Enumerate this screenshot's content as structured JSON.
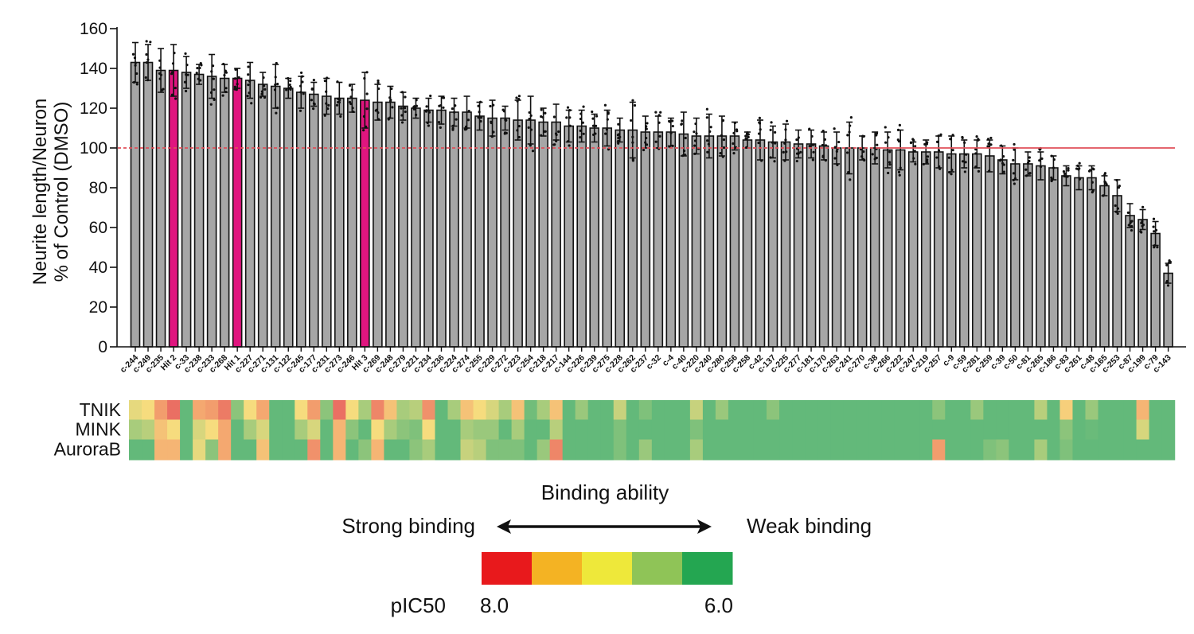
{
  "chart_data": {
    "type": "bar",
    "ylabel_line1": "Neurite length/Neuron",
    "ylabel_line2": "% of Control (DMSO)",
    "ylim": [
      0,
      160
    ],
    "yticks": [
      0,
      20,
      40,
      60,
      80,
      100,
      120,
      140,
      160
    ],
    "reference_line": 100,
    "colors": {
      "bar": "#a6a6a6",
      "hit_bar": "#e0157f",
      "reference_line": "#e0505a"
    },
    "categories": [
      "c-244",
      "c-249",
      "c-235",
      "Hit 2",
      "c-33",
      "c-238",
      "c-233",
      "c-268",
      "Hit 1",
      "c-227",
      "c-271",
      "c-131",
      "c-122",
      "c-245",
      "c-177",
      "c-231",
      "c-273",
      "c-246",
      "Hit 3",
      "c-269",
      "c-248",
      "c-279",
      "c-221",
      "c-234",
      "c-236",
      "c-224",
      "c-274",
      "c-255",
      "c-229",
      "c-272",
      "c-223",
      "c-254",
      "c-218",
      "c-217",
      "c-144",
      "c-226",
      "c-239",
      "c-275",
      "c-228",
      "c-262",
      "c-237",
      "c-32",
      "c-4",
      "c-40",
      "c-220",
      "c-240",
      "c-280",
      "c-256",
      "c-258",
      "c-42",
      "c-137",
      "c-225",
      "c-277",
      "c-181",
      "c-170",
      "c-263",
      "c-241",
      "c-270",
      "c-38",
      "c-266",
      "c-222",
      "c-247",
      "c-219",
      "c-257",
      "c-9",
      "c-59",
      "c-281",
      "c-259",
      "c-39",
      "c-50",
      "c-81",
      "c-265",
      "c-186",
      "c-83",
      "c-261",
      "c-48",
      "c-165",
      "c-253",
      "c-87",
      "c-199",
      "c-79",
      "c-143"
    ],
    "values": [
      143,
      143,
      139,
      139,
      138,
      137,
      136,
      135,
      135,
      134,
      132,
      131,
      130,
      128,
      127,
      126,
      125,
      125,
      124,
      123,
      123,
      121,
      120,
      119,
      119,
      118,
      118,
      116,
      115,
      115,
      114,
      114,
      113,
      113,
      111,
      111,
      110,
      110,
      109,
      109,
      108,
      108,
      108,
      107,
      106,
      106,
      106,
      106,
      104,
      104,
      103,
      103,
      102,
      102,
      101,
      100,
      100,
      100,
      100,
      99,
      99,
      98,
      98,
      98,
      97,
      97,
      97,
      96,
      94,
      92,
      92,
      91,
      90,
      86,
      85,
      85,
      81,
      76,
      66,
      64,
      57,
      37
    ],
    "error": [
      10,
      9,
      11,
      13,
      8,
      5,
      11,
      7,
      5,
      9,
      6,
      11,
      5,
      8,
      6,
      9,
      8,
      7,
      14,
      9,
      8,
      7,
      5,
      6,
      7,
      7,
      8,
      7,
      9,
      6,
      10,
      12,
      7,
      9,
      8,
      8,
      7,
      9,
      6,
      14,
      8,
      8,
      7,
      11,
      9,
      11,
      10,
      7,
      4,
      10,
      8,
      9,
      7,
      7,
      7,
      8,
      13,
      6,
      8,
      9,
      10,
      5,
      6,
      8,
      9,
      7,
      7,
      8,
      7,
      8,
      6,
      7,
      6,
      5,
      6,
      6,
      5,
      8,
      6,
      5,
      6,
      5
    ],
    "highlighted": [
      "Hit 2",
      "Hit 1",
      "Hit 3"
    ],
    "heatmap": {
      "rows": [
        "TNIK",
        "MINK",
        "AuroraB"
      ],
      "scale": {
        "min": 6.0,
        "max": 8.0,
        "label": "pIC50"
      },
      "values": {
        "TNIK": [
          6.9,
          7.0,
          7.5,
          7.9,
          6.0,
          7.4,
          7.5,
          7.8,
          6.3,
          7.0,
          7.4,
          6.0,
          6.0,
          7.0,
          7.5,
          6.3,
          7.9,
          7.0,
          6.5,
          7.7,
          7.2,
          6.5,
          6.6,
          7.6,
          6.0,
          6.5,
          7.2,
          7.0,
          6.8,
          6.5,
          7.2,
          6.1,
          6.5,
          7.2,
          6.0,
          6.4,
          6.0,
          6.0,
          6.7,
          6.0,
          6.2,
          6.0,
          6.0,
          6.0,
          6.7,
          6.0,
          6.4,
          6.0,
          6.0,
          6.0,
          6.3,
          6.0,
          6.0,
          6.0,
          6.0,
          6.0,
          6.0,
          6.0,
          6.0,
          6.0,
          6.0,
          6.0,
          6.0,
          6.3,
          6.0,
          6.0,
          6.4,
          6.0,
          6.0,
          6.0,
          6.0,
          6.6,
          6.0,
          7.1,
          6.0,
          6.4,
          6.0,
          6.0,
          6.0,
          7.3,
          6.0,
          6.0
        ],
        "MINK": [
          6.5,
          6.6,
          7.2,
          7.0,
          6.0,
          6.8,
          7.0,
          7.4,
          6.0,
          6.5,
          6.8,
          6.0,
          6.0,
          6.5,
          6.8,
          6.0,
          7.3,
          6.3,
          6.0,
          7.0,
          6.5,
          6.3,
          6.2,
          7.0,
          6.0,
          6.0,
          6.5,
          6.4,
          6.4,
          6.0,
          6.5,
          6.0,
          6.0,
          6.6,
          6.0,
          6.0,
          6.0,
          6.0,
          6.2,
          6.0,
          6.0,
          6.0,
          6.0,
          6.0,
          6.2,
          6.0,
          6.0,
          6.0,
          6.0,
          6.0,
          6.0,
          6.0,
          6.0,
          6.0,
          6.0,
          6.0,
          6.0,
          6.0,
          6.0,
          6.0,
          6.0,
          6.0,
          6.0,
          6.0,
          6.0,
          6.0,
          6.0,
          6.0,
          6.0,
          6.0,
          6.0,
          6.0,
          6.0,
          6.3,
          6.0,
          6.05,
          6.0,
          6.0,
          6.0,
          6.8,
          6.0,
          6.0
        ],
        "AuroraB": [
          6.0,
          6.0,
          7.3,
          7.3,
          6.0,
          6.9,
          6.3,
          7.4,
          6.0,
          6.0,
          7.2,
          6.0,
          6.0,
          6.0,
          7.6,
          6.0,
          7.3,
          6.0,
          6.3,
          7.3,
          6.0,
          6.0,
          6.3,
          6.5,
          6.0,
          6.0,
          6.7,
          6.6,
          6.2,
          6.2,
          6.2,
          6.0,
          6.4,
          7.7,
          6.0,
          6.0,
          6.0,
          6.0,
          6.2,
          6.0,
          6.4,
          6.0,
          6.0,
          6.0,
          6.5,
          6.0,
          6.0,
          6.0,
          6.0,
          6.0,
          6.0,
          6.0,
          6.0,
          6.0,
          6.0,
          6.0,
          6.0,
          6.0,
          6.0,
          6.0,
          6.0,
          6.0,
          6.0,
          7.5,
          6.0,
          6.0,
          6.0,
          6.2,
          6.3,
          6.0,
          6.0,
          6.5,
          6.0,
          6.2,
          6.0,
          6.0,
          6.0,
          6.0,
          6.0,
          6.0,
          6.0,
          6.0
        ]
      }
    },
    "legend": {
      "title": "Binding ability",
      "left_label": "Strong binding",
      "right_label": "Weak binding",
      "scale_label": "pIC50",
      "scale_min_label": "8.0",
      "scale_max_label": "6.0",
      "swatches": [
        "#e8191c",
        "#f4b323",
        "#eee83a",
        "#8fc457",
        "#24a651"
      ]
    }
  }
}
